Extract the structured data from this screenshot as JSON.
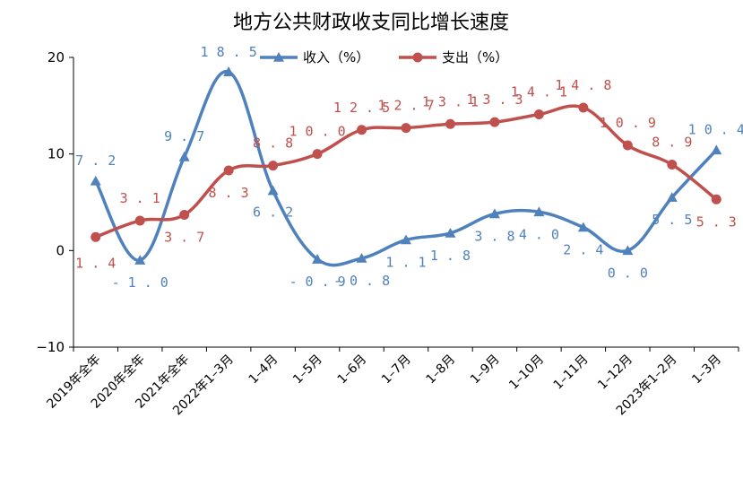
{
  "chart_data": {
    "type": "line",
    "title": "地方公共财政收支同比增长速度",
    "categories": [
      "2019年全年",
      "2020年全年",
      "2021年全年",
      "2022年1-3月",
      "1-4月",
      "1-5月",
      "1-6月",
      "1-7月",
      "1-8月",
      "1-9月",
      "1-10月",
      "1-11月",
      "1-12月",
      "2023年1-2月",
      "1-3月"
    ],
    "ylim": [
      -10,
      20
    ],
    "yticks": [
      -10,
      0,
      10,
      20
    ],
    "legend_position": "top",
    "grid": false,
    "series": [
      {
        "name": "收入（%）",
        "color": "#4f81bd",
        "marker": "triangle",
        "values": [
          7.2,
          -1.0,
          9.7,
          18.5,
          6.2,
          -0.9,
          -0.8,
          1.1,
          1.8,
          3.8,
          4.0,
          2.4,
          0.0,
          5.5,
          10.4
        ],
        "labels": [
          "7.2",
          "-1.0",
          "9.7",
          "18.5",
          "6.2",
          "-0.9",
          "-0.8",
          "1.1",
          "1.8",
          "3.8",
          "4.0",
          "2.4",
          "0.0",
          "5.5",
          "10.4"
        ]
      },
      {
        "name": "支出（%）",
        "color": "#c0504d",
        "marker": "circle",
        "values": [
          1.4,
          3.1,
          3.7,
          8.3,
          8.8,
          10.0,
          12.5,
          12.7,
          13.1,
          13.3,
          14.1,
          14.8,
          10.9,
          8.9,
          5.3
        ],
        "labels": [
          "1.4",
          "3.1",
          "3.7",
          "8.3",
          "8.8",
          "10.0",
          "12.5",
          "12.7",
          "13.1",
          "13.3",
          "14.1",
          "14.8",
          "10.9",
          "8.9",
          "5.3"
        ]
      }
    ]
  }
}
